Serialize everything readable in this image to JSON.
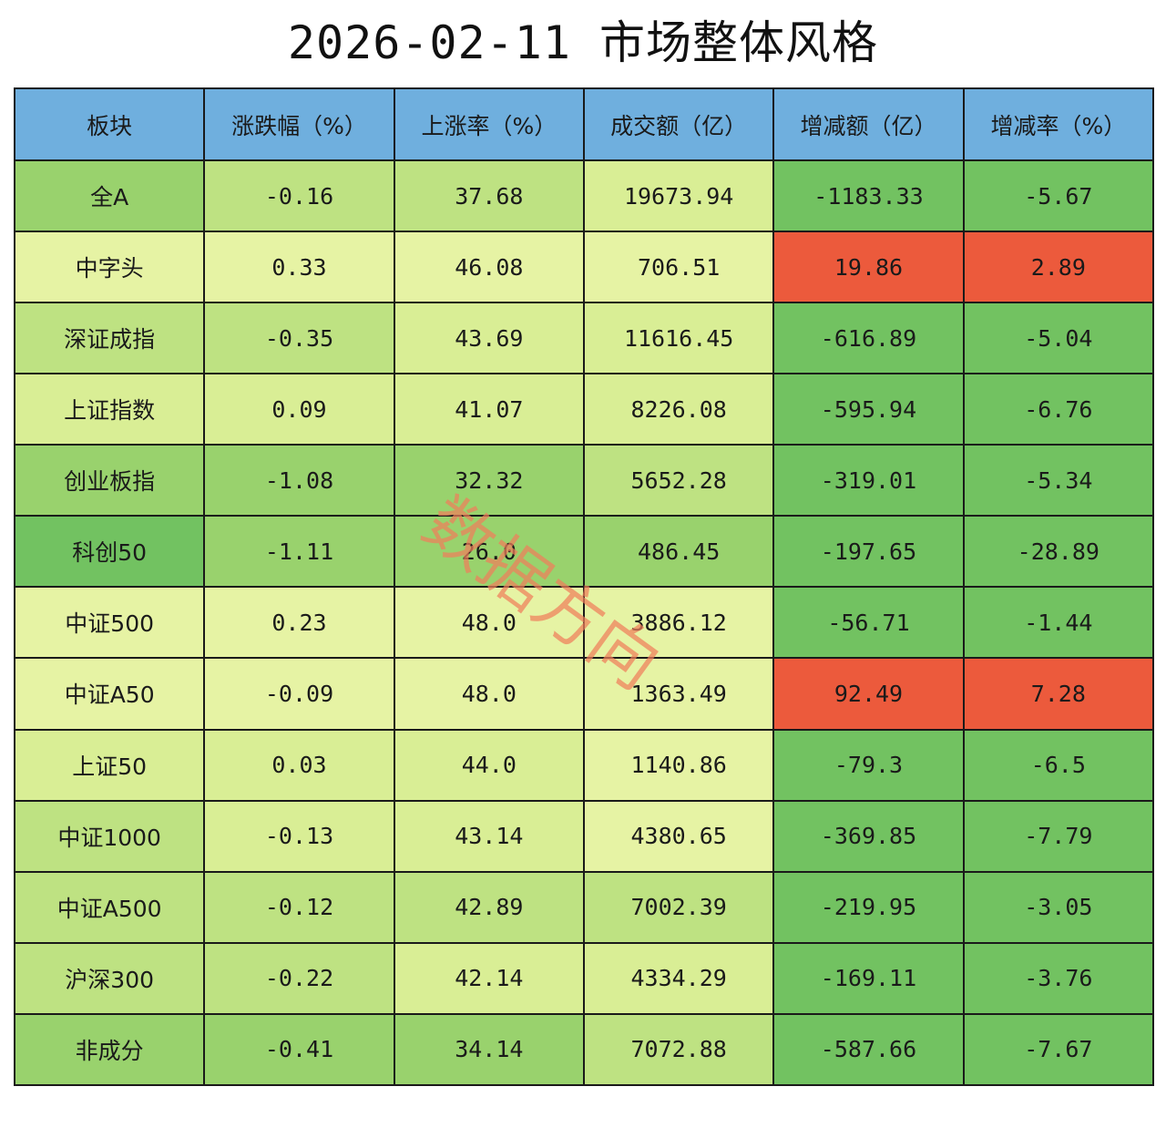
{
  "title": "2026-02-11 市场整体风格",
  "watermark": "数据方向",
  "colors": {
    "header": "#6fafde",
    "red": "#ec5a3c",
    "green_dark": "#72c261",
    "green_mid": "#99d26d",
    "green_light": "#bee282",
    "yellow_green": "#d9ee95",
    "yellow_pale": "#e6f3a4"
  },
  "chart_data": {
    "type": "table",
    "title": "2026-02-11 市场整体风格",
    "columns": [
      "板块",
      "涨跌幅（%）",
      "上涨率（%）",
      "成交额（亿）",
      "增减额（亿）",
      "增减率（%）"
    ],
    "rows": [
      {
        "cells": [
          "全A",
          "-0.16",
          "37.68",
          "19673.94",
          "-1183.33",
          "-5.67"
        ],
        "colors": [
          "#99d26d",
          "#bee282",
          "#bee282",
          "#d9ee95",
          "#72c261",
          "#72c261"
        ]
      },
      {
        "cells": [
          "中字头",
          "0.33",
          "46.08",
          "706.51",
          "19.86",
          "2.89"
        ],
        "colors": [
          "#e6f3a4",
          "#e6f3a4",
          "#e6f3a4",
          "#e6f3a4",
          "#ec5a3c",
          "#ec5a3c"
        ]
      },
      {
        "cells": [
          "深证成指",
          "-0.35",
          "43.69",
          "11616.45",
          "-616.89",
          "-5.04"
        ],
        "colors": [
          "#bee282",
          "#bee282",
          "#d9ee95",
          "#d9ee95",
          "#72c261",
          "#72c261"
        ]
      },
      {
        "cells": [
          "上证指数",
          "0.09",
          "41.07",
          "8226.08",
          "-595.94",
          "-6.76"
        ],
        "colors": [
          "#d9ee95",
          "#d9ee95",
          "#d9ee95",
          "#d9ee95",
          "#72c261",
          "#72c261"
        ]
      },
      {
        "cells": [
          "创业板指",
          "-1.08",
          "32.32",
          "5652.28",
          "-319.01",
          "-5.34"
        ],
        "colors": [
          "#99d26d",
          "#99d26d",
          "#99d26d",
          "#bee282",
          "#72c261",
          "#72c261"
        ]
      },
      {
        "cells": [
          "科创50",
          "-1.11",
          "26.0",
          "486.45",
          "-197.65",
          "-28.89"
        ],
        "colors": [
          "#72c261",
          "#99d26d",
          "#99d26d",
          "#99d26d",
          "#72c261",
          "#72c261"
        ]
      },
      {
        "cells": [
          "中证500",
          "0.23",
          "48.0",
          "3886.12",
          "-56.71",
          "-1.44"
        ],
        "colors": [
          "#e6f3a4",
          "#e6f3a4",
          "#e6f3a4",
          "#e6f3a4",
          "#72c261",
          "#72c261"
        ]
      },
      {
        "cells": [
          "中证A50",
          "-0.09",
          "48.0",
          "1363.49",
          "92.49",
          "7.28"
        ],
        "colors": [
          "#e6f3a4",
          "#e6f3a4",
          "#e6f3a4",
          "#e6f3a4",
          "#ec5a3c",
          "#ec5a3c"
        ]
      },
      {
        "cells": [
          "上证50",
          "0.03",
          "44.0",
          "1140.86",
          "-79.3",
          "-6.5"
        ],
        "colors": [
          "#d9ee95",
          "#d9ee95",
          "#d9ee95",
          "#e6f3a4",
          "#72c261",
          "#72c261"
        ]
      },
      {
        "cells": [
          "中证1000",
          "-0.13",
          "43.14",
          "4380.65",
          "-369.85",
          "-7.79"
        ],
        "colors": [
          "#bee282",
          "#d9ee95",
          "#d9ee95",
          "#e6f3a4",
          "#72c261",
          "#72c261"
        ]
      },
      {
        "cells": [
          "中证A500",
          "-0.12",
          "42.89",
          "7002.39",
          "-219.95",
          "-3.05"
        ],
        "colors": [
          "#bee282",
          "#bee282",
          "#bee282",
          "#bee282",
          "#72c261",
          "#72c261"
        ]
      },
      {
        "cells": [
          "沪深300",
          "-0.22",
          "42.14",
          "4334.29",
          "-169.11",
          "-3.76"
        ],
        "colors": [
          "#bee282",
          "#bee282",
          "#d9ee95",
          "#d9ee95",
          "#72c261",
          "#72c261"
        ]
      },
      {
        "cells": [
          "非成分",
          "-0.41",
          "34.14",
          "7072.88",
          "-587.66",
          "-7.67"
        ],
        "colors": [
          "#99d26d",
          "#99d26d",
          "#99d26d",
          "#bee282",
          "#72c261",
          "#72c261"
        ]
      }
    ]
  }
}
